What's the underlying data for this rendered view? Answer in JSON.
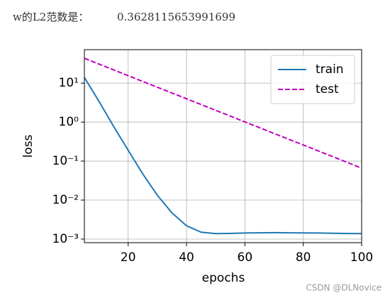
{
  "header": {
    "label": "w的L2范数是：",
    "value": 0.3628115653991699
  },
  "watermark": "CSDN @DLNovice",
  "chart_data": {
    "type": "line",
    "xlabel": "epochs",
    "ylabel": "loss",
    "x": [
      5,
      10,
      15,
      20,
      25,
      30,
      35,
      40,
      45,
      50,
      55,
      60,
      65,
      70,
      75,
      80,
      85,
      90,
      95,
      100
    ],
    "series": [
      {
        "name": "train",
        "color": "#1f77b4",
        "linestyle": "solid",
        "values": [
          14,
          3.4,
          0.78,
          0.19,
          0.047,
          0.0133,
          0.0047,
          0.0022,
          0.0015,
          0.00138,
          0.0014,
          0.00143,
          0.00145,
          0.00146,
          0.00145,
          0.00144,
          0.00143,
          0.00141,
          0.00139,
          0.00138
        ]
      },
      {
        "name": "test",
        "color": "#bf00bf",
        "linestyle": "dashed",
        "values": [
          43.3,
          30.7,
          21.9,
          15.5,
          11.0,
          7.85,
          5.58,
          3.97,
          2.82,
          2.0,
          1.43,
          1.01,
          0.72,
          0.51,
          0.364,
          0.259,
          0.184,
          0.131,
          0.093,
          0.066
        ]
      }
    ],
    "xlim": [
      5,
      100
    ],
    "xticks": [
      20,
      40,
      60,
      80,
      100
    ],
    "ylim": [
      0.00081,
      72
    ],
    "yscale": "log",
    "yticks": [
      {
        "value": 0.001,
        "label": "10⁻³"
      },
      {
        "value": 0.01,
        "label": "10⁻²"
      },
      {
        "value": 0.1,
        "label": "10⁻¹"
      },
      {
        "value": 1,
        "label": "10⁰"
      },
      {
        "value": 10,
        "label": "10¹"
      }
    ],
    "grid": true,
    "legend": "upper right"
  }
}
